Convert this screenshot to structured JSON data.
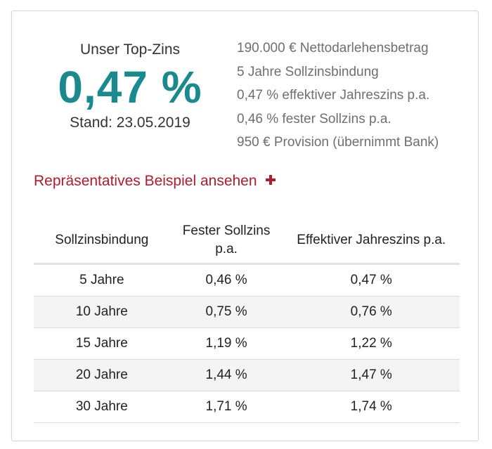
{
  "top_rate": {
    "label": "Unser Top-Zins",
    "rate": "0,47 %",
    "stand": "Stand: 23.05.2019"
  },
  "details": [
    "190.000 € Nettodarlehensbetrag",
    "5 Jahre Sollzinsbindung",
    "0,47 % effektiver Jahreszins p.a.",
    "0,46 % fester Sollzins p.a.",
    "950 € Provision (übernimmt Bank)"
  ],
  "example_link": {
    "label": "Repräsentatives Beispiel ansehen",
    "icon": "plus-icon"
  },
  "table": {
    "headers": [
      "Sollzinsbindung",
      "Fester Sollzins p.a.",
      "Effektiver Jahreszins p.a."
    ],
    "rows": [
      [
        "5 Jahre",
        "0,46 %",
        "0,47 %"
      ],
      [
        "10 Jahre",
        "0,75 %",
        "0,76 %"
      ],
      [
        "15 Jahre",
        "1,19 %",
        "1,22 %"
      ],
      [
        "20 Jahre",
        "1,44 %",
        "1,47 %"
      ],
      [
        "30 Jahre",
        "1,71 %",
        "1,74 %"
      ]
    ]
  },
  "colors": {
    "rate": "#1b8a8f",
    "link": "#b01b2e",
    "detail_text": "#6f6f6f"
  }
}
